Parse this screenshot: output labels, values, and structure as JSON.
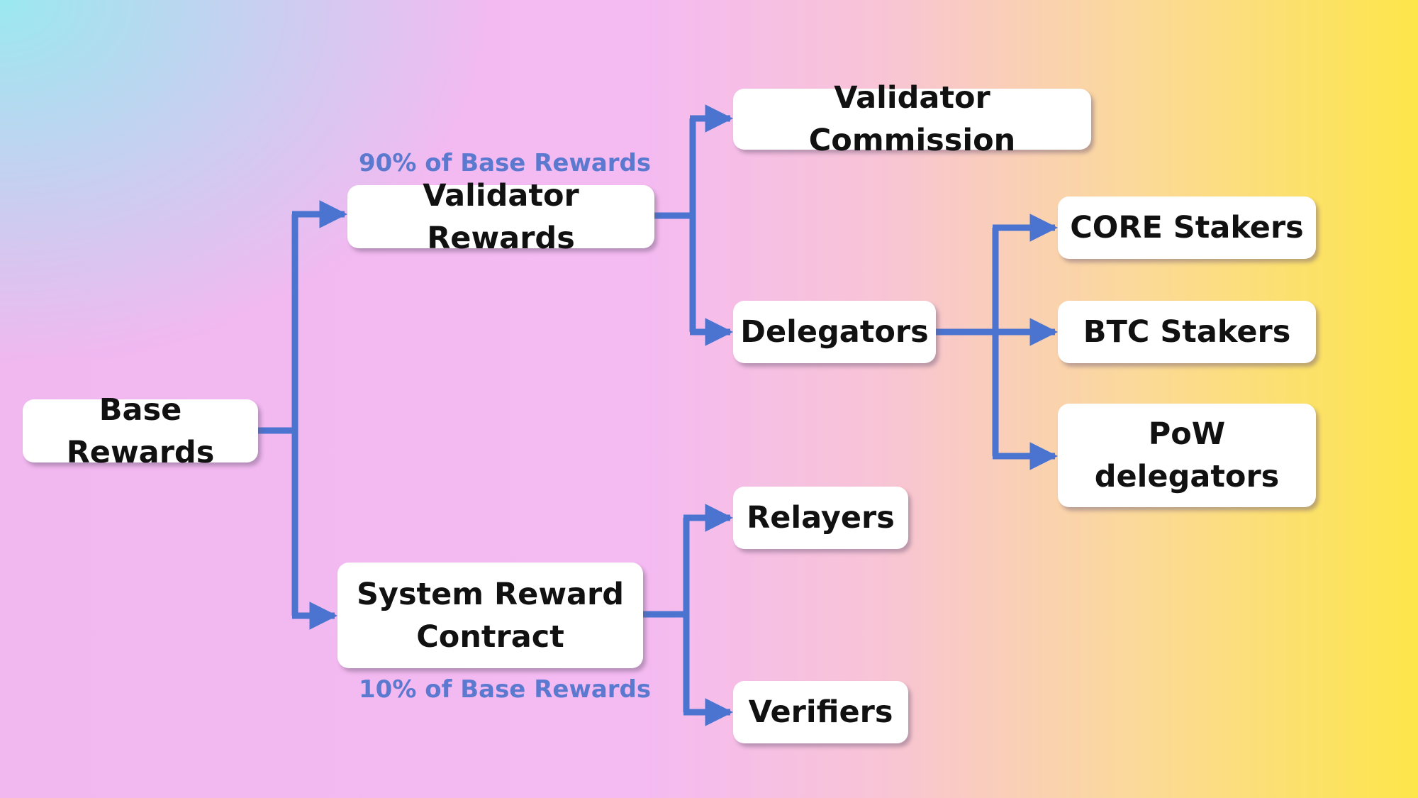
{
  "diagram": {
    "nodes": {
      "base_rewards": "Base Rewards",
      "validator_rewards": "Validator Rewards",
      "system_reward_contract": "System Reward\nContract",
      "validator_commission": "Validator Commission",
      "delegators": "Delegators",
      "core_stakers": "CORE Stakers",
      "btc_stakers": "BTC Stakers",
      "pow_delegators": "PoW\ndelegators",
      "relayers": "Relayers",
      "verifiers": "Verifiers"
    },
    "captions": {
      "validator_share": "90% of Base Rewards",
      "system_share": "10% of Base Rewards"
    },
    "colors": {
      "connector": "#4a74d0",
      "caption": "#5b79cf"
    }
  }
}
